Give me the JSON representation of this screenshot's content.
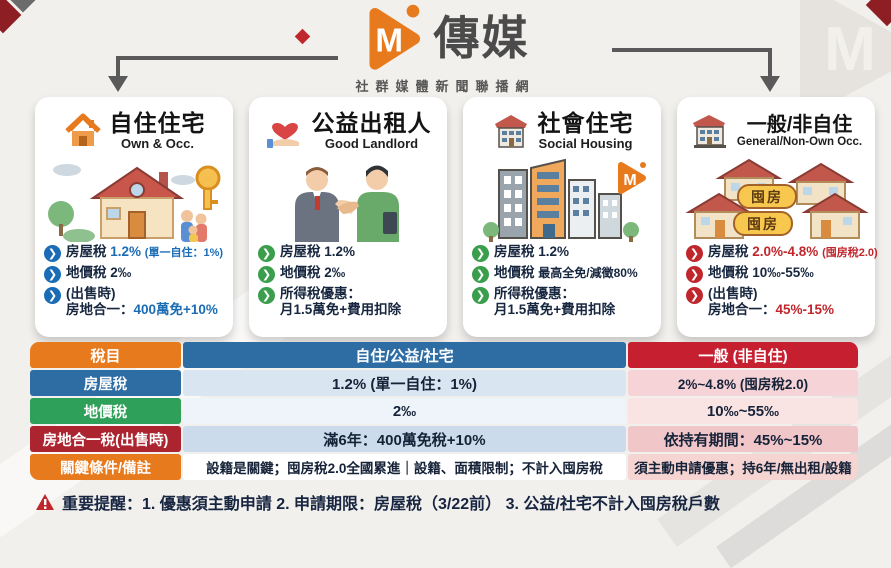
{
  "brand": {
    "logo_text": "傳媒",
    "tagline": "社群媒體新聞聯播網",
    "logo_color": "#e87a1e"
  },
  "cards": [
    {
      "id": "own-occ",
      "title": "自住住宅",
      "subtitle": "Own & Occ.",
      "icon": "house-icon",
      "illustration": "own-occ-illustration",
      "chevron_color": "#1a6cb5",
      "bullets": [
        {
          "lines": [
            [
              {
                "t": "房屋稅 "
              },
              {
                "t": "1.2% ",
                "color": "#1a6cb5"
              },
              {
                "t": "(單一自住：1%)",
                "color": "#1a6cb5",
                "small": true
              }
            ]
          ]
        },
        {
          "lines": [
            [
              {
                "t": "地價稅 2‰"
              }
            ]
          ]
        },
        {
          "lines": [
            [
              {
                "t": "(出售時)"
              }
            ],
            [
              {
                "t": "房地合一："
              },
              {
                "t": "400萬免+10%",
                "color": "#1a6cb5"
              }
            ]
          ]
        }
      ]
    },
    {
      "id": "good-landlord",
      "title": "公益出租人",
      "subtitle": "Good Landlord",
      "icon": "hand-heart-icon",
      "illustration": "handshake-illustration",
      "chevron_color": "#3a9e4c",
      "bullets": [
        {
          "lines": [
            [
              {
                "t": "房屋稅 1.2%"
              }
            ]
          ]
        },
        {
          "lines": [
            [
              {
                "t": "地價稅 2‰"
              }
            ]
          ]
        },
        {
          "lines": [
            [
              {
                "t": "所得稅優惠："
              }
            ],
            [
              {
                "t": "月1.5萬免+費用扣除"
              }
            ]
          ]
        }
      ]
    },
    {
      "id": "social-housing",
      "title": "社會住宅",
      "subtitle": "Social Housing",
      "icon": "building-icon",
      "illustration": "social-housing-illustration",
      "chevron_color": "#3a9e4c",
      "bullets": [
        {
          "lines": [
            [
              {
                "t": "房屋稅 1.2%"
              }
            ]
          ]
        },
        {
          "lines": [
            [
              {
                "t": "地價稅 "
              },
              {
                "t": "最高全免/減徵80%",
                "fit": true
              }
            ]
          ]
        },
        {
          "lines": [
            [
              {
                "t": "所得稅優惠："
              }
            ],
            [
              {
                "t": "月1.5萬免+費用扣除"
              }
            ]
          ]
        }
      ]
    },
    {
      "id": "general-non-own",
      "title": "一般/非自住",
      "subtitle": "General/Non-Own Occ.",
      "icon": "buildings-icon",
      "illustration": "hoarding-houses-illustration",
      "chevron_color": "#c0272d",
      "badges": [
        "囤房",
        "囤房"
      ],
      "bullets": [
        {
          "lines": [
            [
              {
                "t": "房屋稅 "
              },
              {
                "t": "2.0%-4.8% ",
                "color": "#c0272d"
              },
              {
                "t": "(囤房稅2.0)",
                "color": "#c0272d",
                "small": true
              }
            ]
          ]
        },
        {
          "lines": [
            [
              {
                "t": "地價稅 10‰-55‰"
              }
            ]
          ]
        },
        {
          "lines": [
            [
              {
                "t": "(出售時)"
              }
            ],
            [
              {
                "t": "房地合一："
              },
              {
                "t": "45%-15%",
                "color": "#c0272d"
              }
            ]
          ]
        }
      ]
    }
  ],
  "table": {
    "col_headers": [
      {
        "label": "稅目",
        "bg": "#e87a1e"
      },
      {
        "label": "自住/公益/社宅",
        "bg": "#2e6da4"
      },
      {
        "label": "一般 (非自住)",
        "bg": "#c51f30"
      }
    ],
    "rows": [
      {
        "label": "房屋稅",
        "label_bg": "#2e6da4",
        "mid": "1.2% (單一自住：1%)",
        "mid_bg": "#d9e6f2",
        "right": "2%~4.8% (囤房稅2.0)",
        "right_bg": "#f5d3d6"
      },
      {
        "label": "地價稅",
        "label_bg": "#2fa05a",
        "mid": "2‰",
        "mid_bg": "#eef4f9",
        "right": "10‰~55‰",
        "right_bg": "#fae3e3"
      },
      {
        "label": "房地合一稅(出售時)",
        "label_bg": "#ab2430",
        "mid": "滿6年：400萬免稅+10%",
        "mid_bg": "#ccdbeb",
        "right": "依持有期間：45%~15%",
        "right_bg": "#f0c6c9"
      },
      {
        "label": "關鍵條件/備註",
        "label_bg": "#e87a1e",
        "mid": "設籍是關鍵；囤房稅2.0全國累進｜設籍、面積限制；不計入囤房稅",
        "mid_bg": "#ffffff",
        "right": "須主動申請優惠；持6年/無出租/設籍",
        "right_bg": "#f6d4d2"
      }
    ]
  },
  "footer": {
    "reminder_text": "重要提醒：1. 優惠須主動申請 2. 申請期限：房屋稅（3/22前） 3. 公益/社宅不計入囤房稅戶數"
  }
}
